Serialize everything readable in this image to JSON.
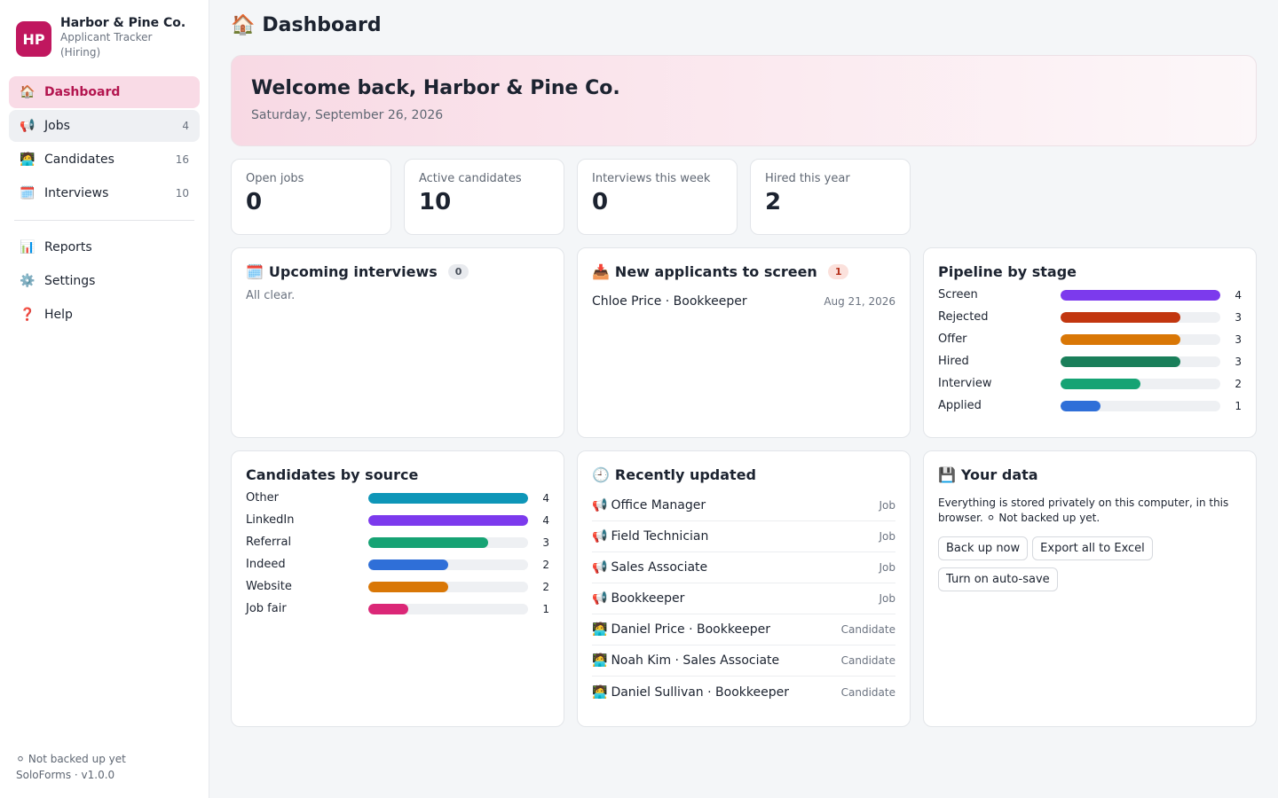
{
  "brand": {
    "initials": "HP",
    "name": "Harbor & Pine Co.",
    "subtitle": "Applicant Tracker (Hiring)"
  },
  "nav": {
    "primary": [
      {
        "icon": "🏠",
        "icon_name": "house-icon",
        "label": "Dashboard",
        "count": ""
      },
      {
        "icon": "📢",
        "icon_name": "megaphone-icon",
        "label": "Jobs",
        "count": "4"
      },
      {
        "icon": "🧑‍💻",
        "icon_name": "person-icon",
        "label": "Candidates",
        "count": "16"
      },
      {
        "icon": "🗓️",
        "icon_name": "calendar-icon",
        "label": "Interviews",
        "count": "10"
      }
    ],
    "secondary": [
      {
        "icon": "📊",
        "icon_name": "bar-chart-icon",
        "label": "Reports"
      },
      {
        "icon": "⚙️",
        "icon_name": "gear-icon",
        "label": "Settings"
      },
      {
        "icon": "❓",
        "icon_name": "question-icon",
        "label": "Help"
      }
    ]
  },
  "sidebar_footer": {
    "backup_status": "⚪ Not backed up yet",
    "version": "SoloForms · v1.0.0"
  },
  "page": {
    "icon": "🏠",
    "title": "Dashboard"
  },
  "welcome": {
    "heading": "Welcome back, Harbor & Pine Co.",
    "date": "Saturday, September 26, 2026"
  },
  "stats": [
    {
      "label": "Open jobs",
      "value": "0"
    },
    {
      "label": "Active candidates",
      "value": "10"
    },
    {
      "label": "Interviews this week",
      "value": "0"
    },
    {
      "label": "Hired this year",
      "value": "2"
    }
  ],
  "upcoming": {
    "icon": "🗓️",
    "title": "Upcoming interviews",
    "count": "0",
    "empty": "All clear."
  },
  "new_applicants": {
    "icon": "📥",
    "title": "New applicants to screen",
    "count": "1",
    "items": [
      {
        "label": "Chloe Price · Bookkeeper",
        "date": "Aug 21, 2026"
      }
    ]
  },
  "pipeline": {
    "title": "Pipeline by stage",
    "max": 4,
    "rows": [
      {
        "label": "Screen",
        "value": 4,
        "color": "#7c3aed"
      },
      {
        "label": "Rejected",
        "value": 3,
        "color": "#c2360f"
      },
      {
        "label": "Offer",
        "value": 3,
        "color": "#d97706"
      },
      {
        "label": "Hired",
        "value": 3,
        "color": "#1a7f5a"
      },
      {
        "label": "Interview",
        "value": 2,
        "color": "#16a374"
      },
      {
        "label": "Applied",
        "value": 1,
        "color": "#2f6fd8"
      }
    ]
  },
  "sources": {
    "title": "Candidates by source",
    "max": 4,
    "rows": [
      {
        "label": "Other",
        "value": 4,
        "color": "#0e96b8"
      },
      {
        "label": "LinkedIn",
        "value": 4,
        "color": "#7c3aed"
      },
      {
        "label": "Referral",
        "value": 3,
        "color": "#16a374"
      },
      {
        "label": "Indeed",
        "value": 2,
        "color": "#2f6fd8"
      },
      {
        "label": "Website",
        "value": 2,
        "color": "#d97706"
      },
      {
        "label": "Job fair",
        "value": 1,
        "color": "#db2777"
      }
    ]
  },
  "recent": {
    "icon": "🕘",
    "title": "Recently updated",
    "items": [
      {
        "icon": "📢",
        "label": "Office Manager",
        "type": "Job"
      },
      {
        "icon": "📢",
        "label": "Field Technician",
        "type": "Job"
      },
      {
        "icon": "📢",
        "label": "Sales Associate",
        "type": "Job"
      },
      {
        "icon": "📢",
        "label": "Bookkeeper",
        "type": "Job"
      },
      {
        "icon": "🧑‍💻",
        "label": "Daniel Price · Bookkeeper",
        "type": "Candidate"
      },
      {
        "icon": "🧑‍💻",
        "label": "Noah Kim · Sales Associate",
        "type": "Candidate"
      },
      {
        "icon": "🧑‍💻",
        "label": "Daniel Sullivan · Bookkeeper",
        "type": "Candidate"
      }
    ]
  },
  "your_data": {
    "icon": "💾",
    "title": "Your data",
    "text": "Everything is stored privately on this computer, in this browser. ⚪ Not backed up yet.",
    "buttons": {
      "backup": "Back up now",
      "export": "Export all to Excel",
      "autosave": "Turn on auto-save"
    }
  }
}
